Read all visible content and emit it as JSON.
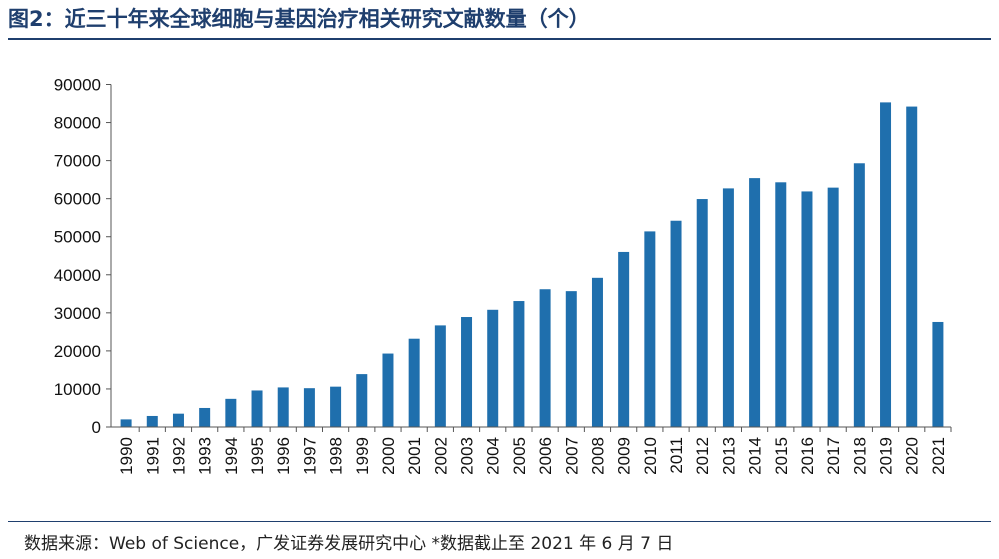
{
  "title": "图2：近三十年来全球细胞与基因治疗相关研究文献数量（个）",
  "source": "数据来源：Web of Science，广发证券发展研究中心 *数据截止至 2021 年 6 月 7 日",
  "colors": {
    "bar": "#1f6fad",
    "title": "#1f3f6e",
    "axis": "#555555"
  },
  "chart_data": {
    "type": "bar",
    "title": "",
    "xlabel": "",
    "ylabel": "",
    "ylim": [
      0,
      90000
    ],
    "yticks": [
      0,
      10000,
      20000,
      30000,
      40000,
      50000,
      60000,
      70000,
      80000,
      90000
    ],
    "grid": false,
    "categories": [
      "1990",
      "1991",
      "1992",
      "1993",
      "1994",
      "1995",
      "1996",
      "1997",
      "1998",
      "1999",
      "2000",
      "2001",
      "2002",
      "2003",
      "2004",
      "2005",
      "2006",
      "2007",
      "2008",
      "2009",
      "2010",
      "2011",
      "2012",
      "2013",
      "2014",
      "2015",
      "2016",
      "2017",
      "2018",
      "2019",
      "2020",
      "2021"
    ],
    "values": [
      2000,
      2900,
      3500,
      5000,
      7400,
      9600,
      10400,
      10200,
      10600,
      13900,
      19300,
      23200,
      26700,
      28900,
      30800,
      33100,
      36200,
      35700,
      39200,
      46000,
      51400,
      54200,
      59900,
      62700,
      65400,
      64300,
      61900,
      62900,
      69300,
      85300,
      84200,
      27600
    ]
  }
}
